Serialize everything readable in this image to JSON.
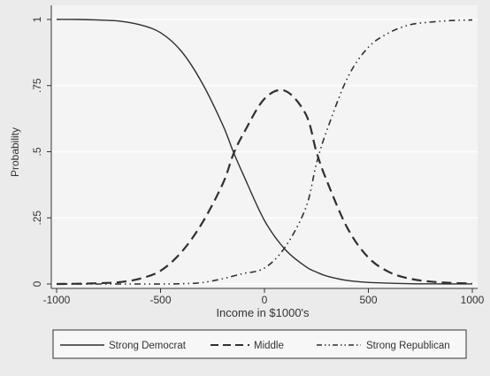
{
  "chart_data": {
    "type": "line",
    "title": "",
    "xlabel": "Income in $1000's",
    "ylabel": "Probability",
    "xlim": [
      -1000,
      1000
    ],
    "ylim": [
      0,
      1
    ],
    "x_ticks": [
      -1000,
      -500,
      0,
      500,
      1000
    ],
    "x_tick_labels": [
      "-1000",
      "-500",
      "0",
      "500",
      "1000"
    ],
    "y_ticks": [
      0,
      0.25,
      0.5,
      0.75,
      1
    ],
    "y_tick_labels": [
      "0",
      ".25",
      ".5",
      ".75",
      "1"
    ],
    "grid": "horizontal",
    "legend_position": "bottom",
    "x": [
      -1000,
      -900,
      -800,
      -700,
      -600,
      -500,
      -400,
      -300,
      -200,
      -150,
      -100,
      0,
      100,
      200,
      250,
      300,
      400,
      500,
      600,
      700,
      800,
      900,
      1000
    ],
    "series": [
      {
        "name": "Strong Democrat",
        "style": "solid",
        "values": [
          1.0,
          1.0,
          0.998,
          0.994,
          0.98,
          0.95,
          0.88,
          0.76,
          0.6,
          0.5,
          0.41,
          0.24,
          0.13,
          0.065,
          0.045,
          0.03,
          0.013,
          0.006,
          0.003,
          0.001,
          0.0005,
          0.0002,
          0.0001
        ]
      },
      {
        "name": "Middle",
        "style": "dashed",
        "values": [
          0.0,
          0.001,
          0.003,
          0.007,
          0.02,
          0.05,
          0.12,
          0.23,
          0.38,
          0.49,
          0.57,
          0.7,
          0.73,
          0.64,
          0.5,
          0.39,
          0.21,
          0.1,
          0.045,
          0.02,
          0.009,
          0.004,
          0.002
        ]
      },
      {
        "name": "Strong Republican",
        "style": "dash-dot-dot",
        "values": [
          0.0,
          0.0,
          0.0,
          0.0,
          0.0,
          0.0,
          0.001,
          0.005,
          0.02,
          0.03,
          0.04,
          0.06,
          0.14,
          0.29,
          0.455,
          0.58,
          0.78,
          0.895,
          0.95,
          0.98,
          0.99,
          0.996,
          0.998
        ]
      }
    ]
  },
  "legend": {
    "items": [
      {
        "label": "Strong Democrat",
        "style": "solid"
      },
      {
        "label": "Middle",
        "style": "dashed"
      },
      {
        "label": "Strong Republican",
        "style": "dash-dot-dot"
      }
    ]
  },
  "colors": {
    "background": "#ebebeb",
    "plot_area": "#f4f4f4",
    "gridline": "#ffffff",
    "line": "#2f2f2f",
    "axis": "#333333"
  }
}
